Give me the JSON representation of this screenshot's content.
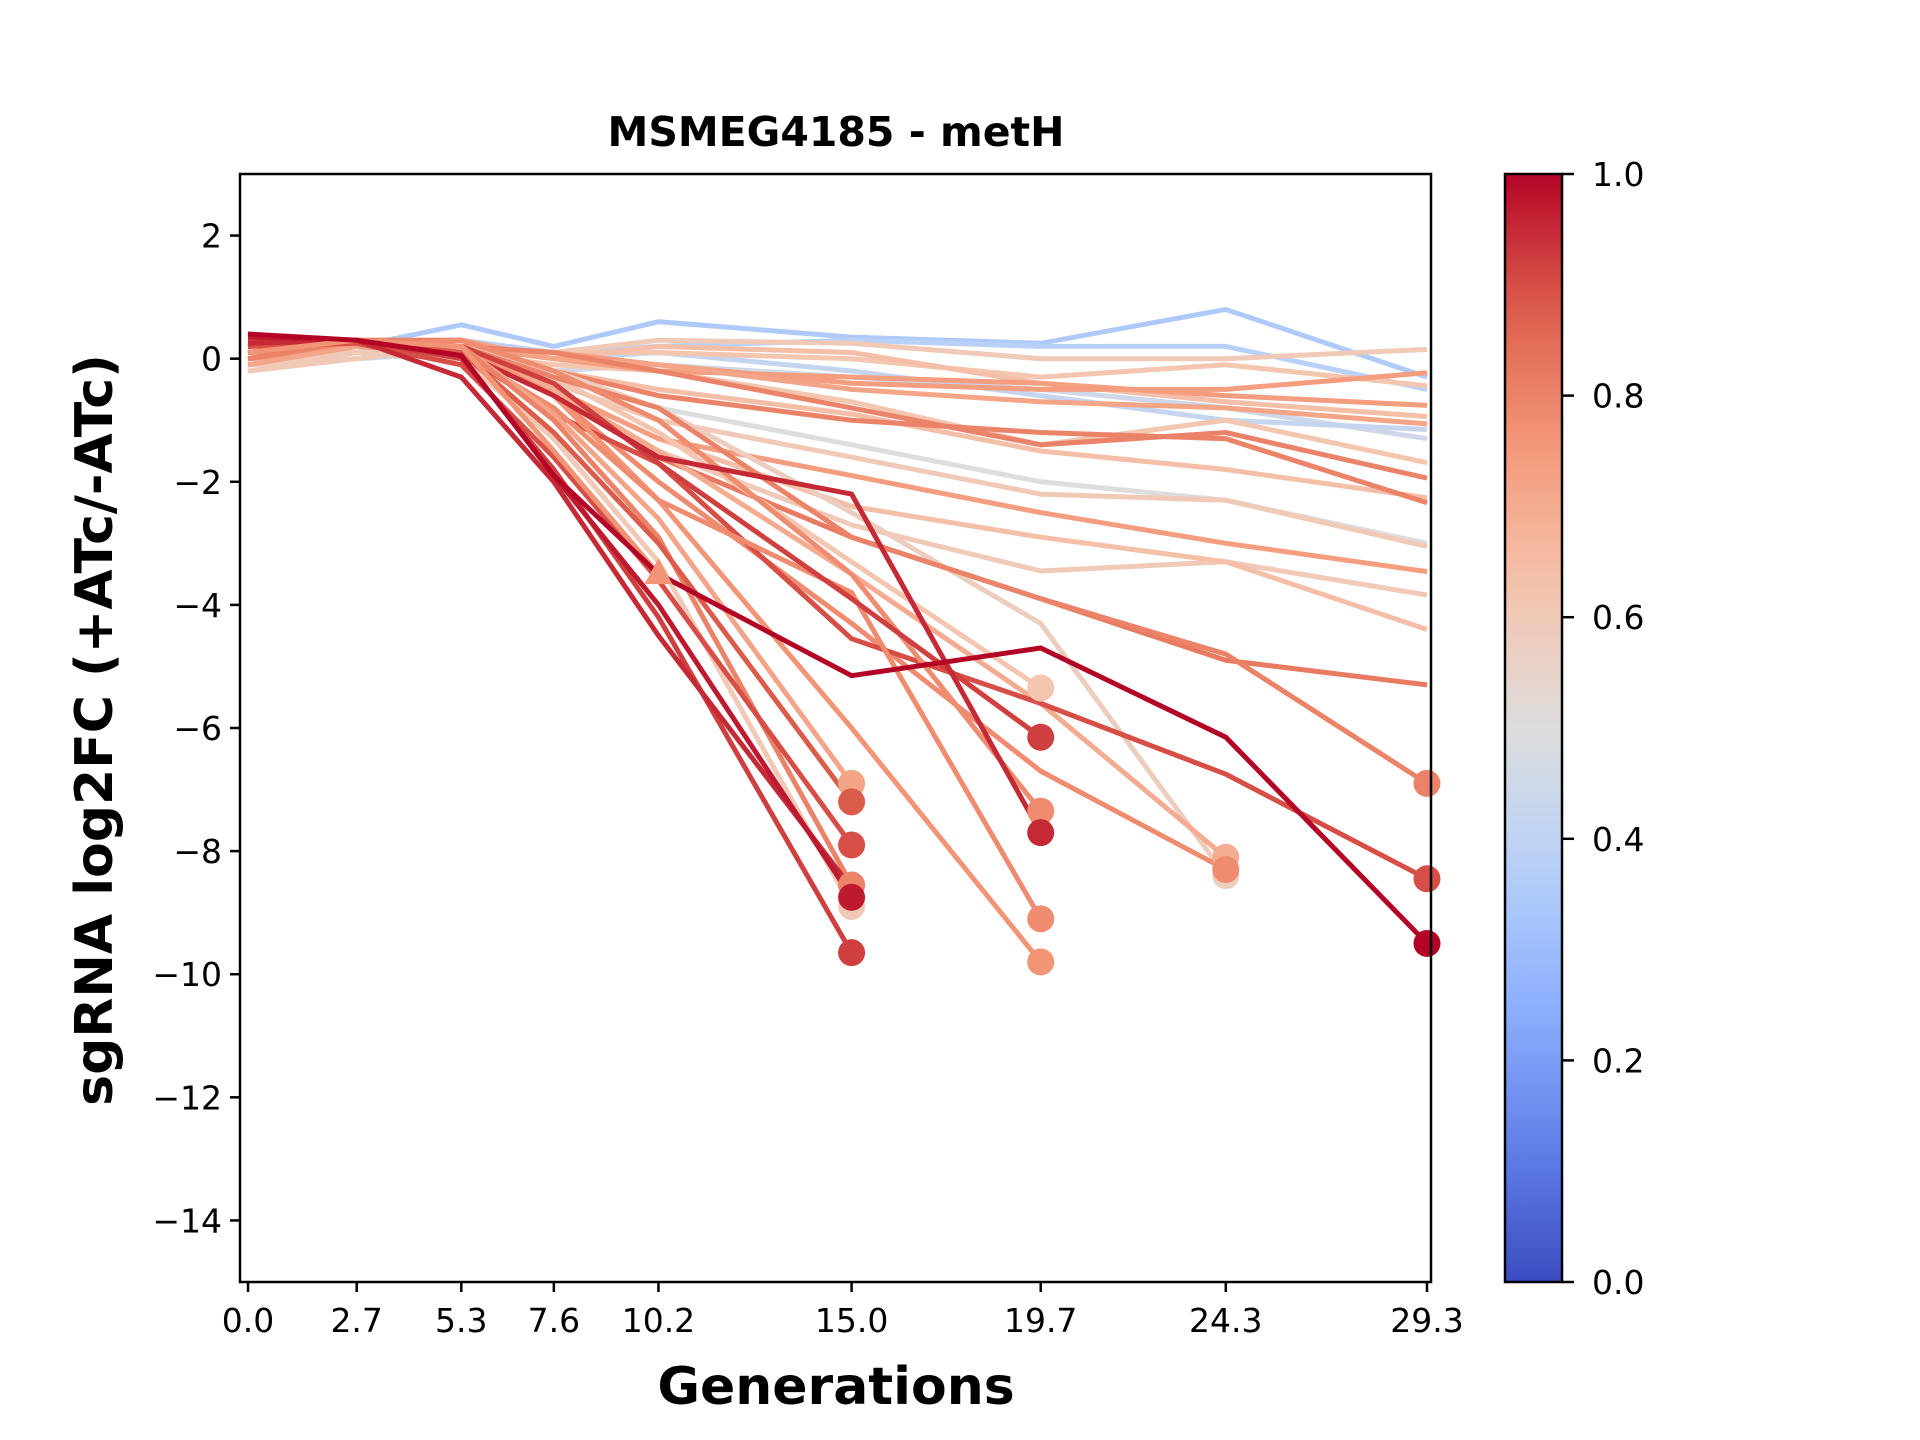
{
  "chart_data": {
    "type": "line",
    "title": "MSMEG4185 - metH",
    "xlabel": "Generations",
    "ylabel": "sgRNA log2FC (+ATc/-ATc)",
    "x": [
      0.0,
      2.7,
      5.3,
      7.6,
      10.2,
      15.0,
      19.7,
      24.3,
      29.3
    ],
    "xticks": [
      "0.0",
      "2.7",
      "5.3",
      "7.6",
      "10.2",
      "15.0",
      "19.7",
      "24.3",
      "29.3"
    ],
    "yticks": [
      2,
      0,
      -2,
      -4,
      -6,
      -8,
      -10,
      -12,
      -14
    ],
    "ytick_labels": [
      "2",
      "0",
      "−2",
      "−4",
      "−6",
      "−8",
      "−10",
      "−12",
      "−14"
    ],
    "xlim": [
      -0.2,
      29.4
    ],
    "ylim": [
      -15,
      3
    ],
    "grid": false,
    "colorbar": {
      "colormap": "coolwarm",
      "range": [
        0.0,
        1.0
      ],
      "ticks": [
        0.0,
        0.2,
        0.4,
        0.6,
        0.8,
        1.0
      ],
      "tick_labels": [
        "0.0",
        "0.2",
        "0.4",
        "0.6",
        "0.8",
        "1.0"
      ],
      "placement": "right"
    },
    "series": [
      {
        "c": 0.35,
        "y": [
          0.1,
          0.2,
          0.55,
          0.2,
          0.6,
          0.35,
          0.25,
          0.8,
          -0.3
        ],
        "marker": "none"
      },
      {
        "c": 0.38,
        "y": [
          0.0,
          0.1,
          0.3,
          0.1,
          0.2,
          0.3,
          0.2,
          0.2,
          -0.5
        ],
        "marker": "none"
      },
      {
        "c": 0.45,
        "y": [
          -0.1,
          0.0,
          0.1,
          -0.2,
          -0.1,
          -0.3,
          -0.5,
          -0.8,
          -1.3
        ],
        "marker": "none"
      },
      {
        "c": 0.42,
        "y": [
          0.0,
          0.1,
          0.2,
          0.0,
          0.1,
          -0.2,
          -0.6,
          -1.0,
          -1.15
        ],
        "marker": "none"
      },
      {
        "c": 0.5,
        "y": [
          0.0,
          0.1,
          0.1,
          -0.3,
          -0.8,
          -1.4,
          -2.0,
          -2.3,
          -3.0
        ],
        "marker": "none"
      },
      {
        "c": 0.6,
        "y": [
          -0.2,
          0.0,
          0.2,
          0.1,
          0.3,
          0.25,
          0.0,
          0.0,
          0.15
        ],
        "marker": "none"
      },
      {
        "c": 0.62,
        "y": [
          -0.1,
          0.1,
          0.2,
          0.1,
          0.1,
          0.0,
          -0.3,
          -0.1,
          -0.44
        ],
        "marker": "none"
      },
      {
        "c": 0.64,
        "y": [
          -0.1,
          0.1,
          0.2,
          0.0,
          0.2,
          0.1,
          -0.4,
          -0.7,
          -0.94
        ],
        "marker": "none"
      },
      {
        "c": 0.64,
        "y": [
          -0.1,
          0.1,
          0.2,
          -0.2,
          -0.5,
          -0.9,
          -1.5,
          -1.8,
          -2.26
        ],
        "marker": "none"
      },
      {
        "c": 0.62,
        "y": [
          0.0,
          0.1,
          0.1,
          -0.1,
          -0.2,
          -0.7,
          -1.4,
          -1.0,
          -1.69
        ],
        "marker": "none"
      },
      {
        "c": 0.6,
        "y": [
          -0.1,
          0.1,
          0.1,
          -0.4,
          -1.0,
          -1.6,
          -2.2,
          -2.3,
          -3.05
        ],
        "marker": "none"
      },
      {
        "c": 0.6,
        "y": [
          0.0,
          0.1,
          0.1,
          -0.6,
          -1.5,
          -2.7,
          -3.45,
          -3.3,
          -3.84
        ],
        "marker": "none"
      },
      {
        "c": 0.64,
        "y": [
          0.0,
          0.1,
          0.0,
          -0.5,
          -1.3,
          -2.4,
          -2.9,
          -3.3,
          -4.4
        ],
        "marker": "none"
      },
      {
        "c": 0.74,
        "y": [
          0.0,
          0.2,
          0.2,
          0.1,
          -0.1,
          -0.4,
          -0.5,
          -0.5,
          -0.23
        ],
        "marker": "none"
      },
      {
        "c": 0.74,
        "y": [
          0.1,
          0.2,
          0.2,
          0.0,
          -0.2,
          -0.3,
          -0.4,
          -0.6,
          -0.76
        ],
        "marker": "none"
      },
      {
        "c": 0.72,
        "y": [
          0.0,
          0.3,
          0.3,
          0.0,
          -0.1,
          -0.5,
          -0.7,
          -0.8,
          -1.06
        ],
        "marker": "none"
      },
      {
        "c": 0.8,
        "y": [
          0.1,
          0.3,
          0.2,
          0.1,
          -0.2,
          -0.8,
          -1.4,
          -1.2,
          -1.94
        ],
        "marker": "none"
      },
      {
        "c": 0.8,
        "y": [
          0.1,
          0.3,
          0.3,
          -0.2,
          -0.6,
          -1.0,
          -1.2,
          -1.3,
          -2.34
        ],
        "marker": "none"
      },
      {
        "c": 0.74,
        "y": [
          0.0,
          0.2,
          0.2,
          -0.5,
          -1.3,
          -1.9,
          -2.5,
          -3.0,
          -3.46
        ],
        "marker": "none"
      },
      {
        "c": 0.82,
        "y": [
          0.1,
          0.2,
          0.2,
          -0.6,
          -1.6,
          -2.9,
          -3.9,
          -4.9,
          -5.3
        ],
        "marker": "none"
      },
      {
        "c": 0.62,
        "y": [
          -0.1,
          0.2,
          0.2,
          -0.3,
          -1.2,
          -3.3,
          -5.35
        ],
        "marker": "circle"
      },
      {
        "c": 0.58,
        "y": [
          -0.1,
          0.1,
          0.2,
          -0.2,
          -0.8,
          -2.5,
          -4.3,
          -8.4
        ],
        "marker": "circle"
      },
      {
        "c": 0.7,
        "y": [
          0.0,
          0.2,
          0.1,
          -0.5,
          -1.5,
          -3.5,
          -5.6,
          -8.1
        ],
        "marker": "circle"
      },
      {
        "c": 0.78,
        "y": [
          0.1,
          0.2,
          0.2,
          -0.6,
          -2.0,
          -4.3,
          -6.7,
          -8.3
        ],
        "marker": "circle"
      },
      {
        "c": 0.8,
        "y": [
          0.1,
          0.3,
          0.2,
          -0.3,
          -0.8,
          -2.9,
          -3.9,
          -4.8,
          -6.9
        ],
        "marker": "circle"
      },
      {
        "c": 0.9,
        "y": [
          0.2,
          0.3,
          0.1,
          -0.9,
          -1.7,
          -4.55,
          -5.6,
          -6.75,
          -8.45
        ],
        "marker": "circle"
      },
      {
        "c": 0.78,
        "y": [
          0.0,
          0.2,
          0.3,
          -0.2,
          -1.0,
          -3.5,
          -7.35
        ],
        "marker": "circle"
      },
      {
        "c": 0.76,
        "y": [
          0.1,
          0.3,
          0.2,
          -0.6,
          -2.3,
          -6.0,
          -9.8
        ],
        "marker": "circle"
      },
      {
        "c": 0.78,
        "y": [
          0.0,
          0.2,
          0.1,
          -0.8,
          -2.3,
          -3.8,
          -9.1
        ],
        "marker": "circle"
      },
      {
        "c": 0.92,
        "y": [
          0.2,
          0.3,
          0.2,
          -0.4,
          -1.7,
          -3.9,
          -6.15
        ],
        "marker": "circle"
      },
      {
        "c": 0.95,
        "y": [
          0.3,
          0.3,
          0.1,
          -0.6,
          -1.6,
          -2.2,
          -7.7
        ],
        "marker": "circle"
      },
      {
        "c": 0.72,
        "y": [
          -0.1,
          0.2,
          0.2,
          -0.9,
          -2.6,
          -6.9
        ],
        "marker": "circle"
      },
      {
        "c": 0.6,
        "y": [
          -0.2,
          0.1,
          0.0,
          -1.3,
          -3.3,
          -8.9
        ],
        "marker": "circle"
      },
      {
        "c": 0.8,
        "y": [
          0.0,
          0.3,
          0.2,
          -1.0,
          -2.9,
          -8.55
        ],
        "marker": "circle"
      },
      {
        "c": 0.88,
        "y": [
          0.1,
          0.3,
          0.1,
          -1.2,
          -3.0,
          -7.2
        ],
        "marker": "circle"
      },
      {
        "c": 0.9,
        "y": [
          0.2,
          0.25,
          -0.1,
          -1.6,
          -3.6,
          -7.9
        ],
        "marker": "circle"
      },
      {
        "c": 0.92,
        "y": [
          0.3,
          0.3,
          0.0,
          -1.8,
          -4.2,
          -9.65
        ],
        "marker": "circle"
      },
      {
        "c": 0.95,
        "y": [
          0.25,
          0.3,
          -0.3,
          -2.0,
          -4.5,
          -8.6
        ],
        "marker": "none"
      },
      {
        "c": 0.97,
        "y": [
          0.35,
          0.3,
          0.05,
          -1.9,
          -4.0,
          -8.75
        ],
        "marker": "circle"
      },
      {
        "c": 0.76,
        "y": [
          0.1,
          0.3,
          0.2,
          -1.5,
          -3.5
        ],
        "marker": "triangle"
      },
      {
        "c": 1.0,
        "y": [
          0.4,
          0.3,
          0.05,
          -1.9,
          -3.5,
          -5.15,
          -4.7,
          -6.15,
          -9.5
        ],
        "marker": "circle"
      }
    ]
  }
}
